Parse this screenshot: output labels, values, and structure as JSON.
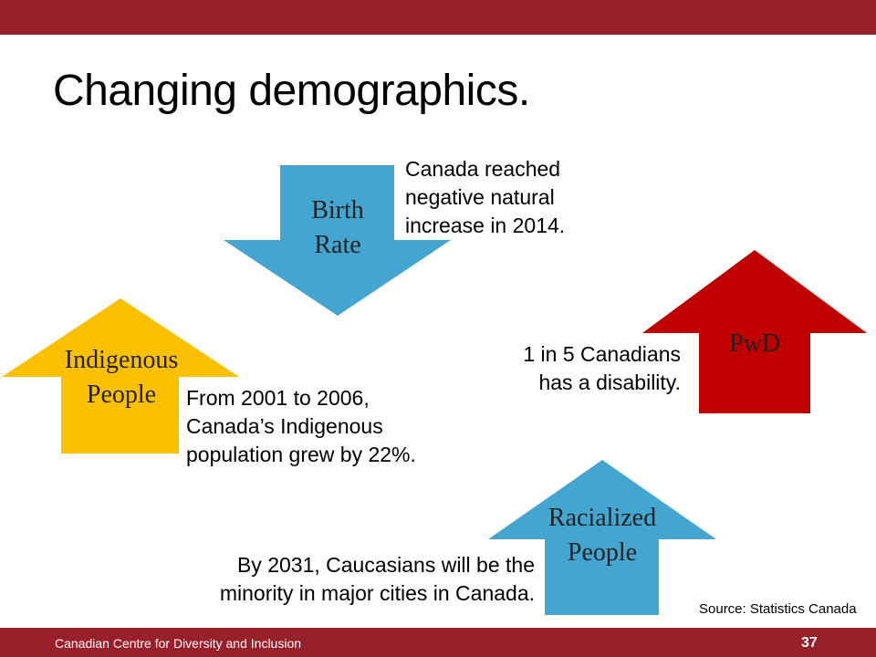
{
  "slide": {
    "title": "Changing demographics.",
    "footer_org": "Canadian Centre for Diversity and Inclusion",
    "page_number": "37",
    "source": "Source: Statistics Canada"
  },
  "arrows": {
    "birth_rate": {
      "label": "Birth\nRate",
      "direction": "down",
      "color": "#44a6d0"
    },
    "indigenous": {
      "label": "Indigenous\nPeople",
      "direction": "up",
      "color": "#fbc000"
    },
    "pwd": {
      "label": "PwD",
      "direction": "up",
      "color": "#c00000"
    },
    "racialized": {
      "label": "Racialized\nPeople",
      "direction": "up",
      "color": "#44a6d0"
    }
  },
  "notes": {
    "birth_rate": "Canada reached\nnegative natural\nincrease in 2014.",
    "indigenous": "From 2001 to 2006,\nCanada’s Indigenous\npopulation grew by 22%.",
    "pwd": "1 in 5 Canadians\nhas a disability.",
    "racialized": "By 2031, Caucasians will be the\nminority in major cities in Canada."
  }
}
